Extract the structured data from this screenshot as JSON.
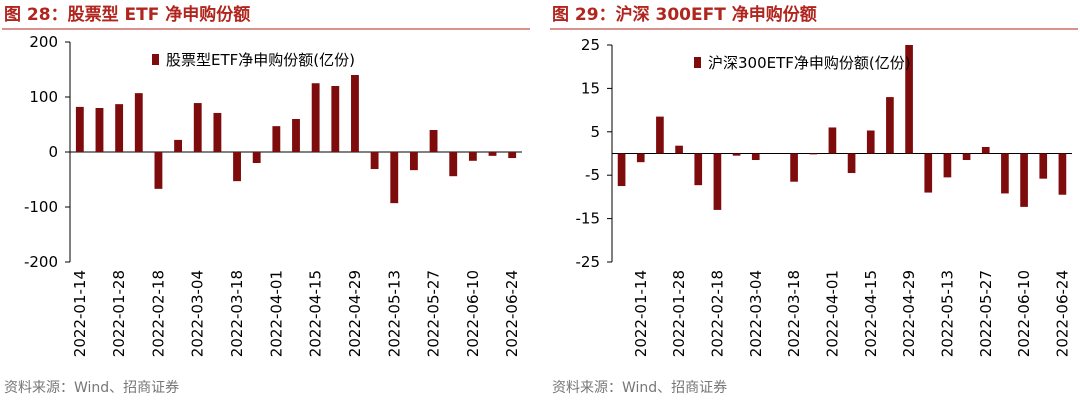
{
  "chart_data": [
    {
      "type": "bar",
      "title": "图 28：股票型 ETF 净申购份额",
      "source": "资料来源：Wind、招商证券",
      "categories": [
        "2022-01-14",
        null,
        "2022-01-28",
        null,
        "2022-02-18",
        null,
        "2022-03-04",
        null,
        "2022-03-18",
        null,
        "2022-04-01",
        null,
        "2022-04-15",
        null,
        "2022-04-29",
        null,
        "2022-05-13",
        null,
        "2022-05-27",
        null,
        "2022-06-10",
        null,
        "2022-06-24"
      ],
      "series": [
        {
          "name": "股票型ETF净申购份额(亿份)",
          "color": "#7f0c0c",
          "values": [
            82,
            80,
            87,
            107,
            -67,
            22,
            89,
            71,
            -53,
            -20,
            47,
            60,
            125,
            120,
            140,
            -31,
            -93,
            -33,
            40,
            -44,
            -16,
            -7,
            -11
          ]
        }
      ],
      "ylim": [
        -200,
        200
      ],
      "yticks": [
        -200,
        -100,
        0,
        100,
        200
      ]
    },
    {
      "type": "bar",
      "title": "图 29：沪深 300EFT 净申购份额",
      "source": "资料来源：Wind、招商证券",
      "categories": [
        null,
        "2022-01-14",
        null,
        "2022-01-28",
        null,
        "2022-02-18",
        null,
        "2022-03-04",
        null,
        "2022-03-18",
        null,
        "2022-04-01",
        null,
        "2022-04-15",
        null,
        "2022-04-29",
        null,
        "2022-05-13",
        null,
        "2022-05-27",
        null,
        "2022-06-10",
        null,
        "2022-06-24"
      ],
      "series": [
        {
          "name": "沪深300ETF净申购份额(亿份)",
          "color": "#7f0c0c",
          "values": [
            -7.5,
            -2,
            8.5,
            1.8,
            -7.3,
            -13,
            -0.5,
            -1.5,
            0,
            -6.5,
            -0.2,
            6,
            -4.5,
            5.3,
            13,
            25,
            -9,
            -5.5,
            -1.5,
            1.5,
            -9.2,
            -12.3,
            -5.8,
            -9.5
          ]
        }
      ],
      "ylim": [
        -25,
        25
      ],
      "yticks": [
        -25,
        -15,
        -5,
        5,
        15,
        25
      ]
    }
  ]
}
